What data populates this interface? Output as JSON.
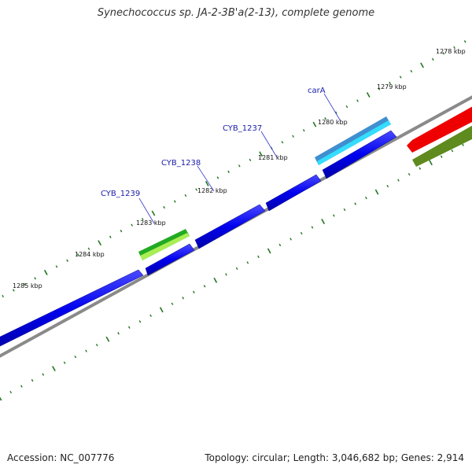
{
  "title": "Synechococcus sp. JA-2-3B'a(2-13), complete genome",
  "footer": {
    "accession": "Accession: NC_007776",
    "summary": "Topology: circular; Length: 3,046,682 bp; Genes: 2,914"
  },
  "scale_labels": [
    "1278 kbp",
    "1279 kbp",
    "1280 kbp",
    "1281 kbp",
    "1282 kbp",
    "1283 kbp",
    "1284 kbp",
    "1285 kbp"
  ],
  "gene_labels": [
    "carA",
    "CYB_1237",
    "CYB_1238",
    "CYB_1239"
  ],
  "colors": {
    "cds": "#0000ee",
    "rna_feature": "#3399dd",
    "green_feature": "#33aa22",
    "red_feature": "#ee0000",
    "olive_feature": "#668822",
    "backbone": "#888888",
    "tick": "#227722"
  }
}
